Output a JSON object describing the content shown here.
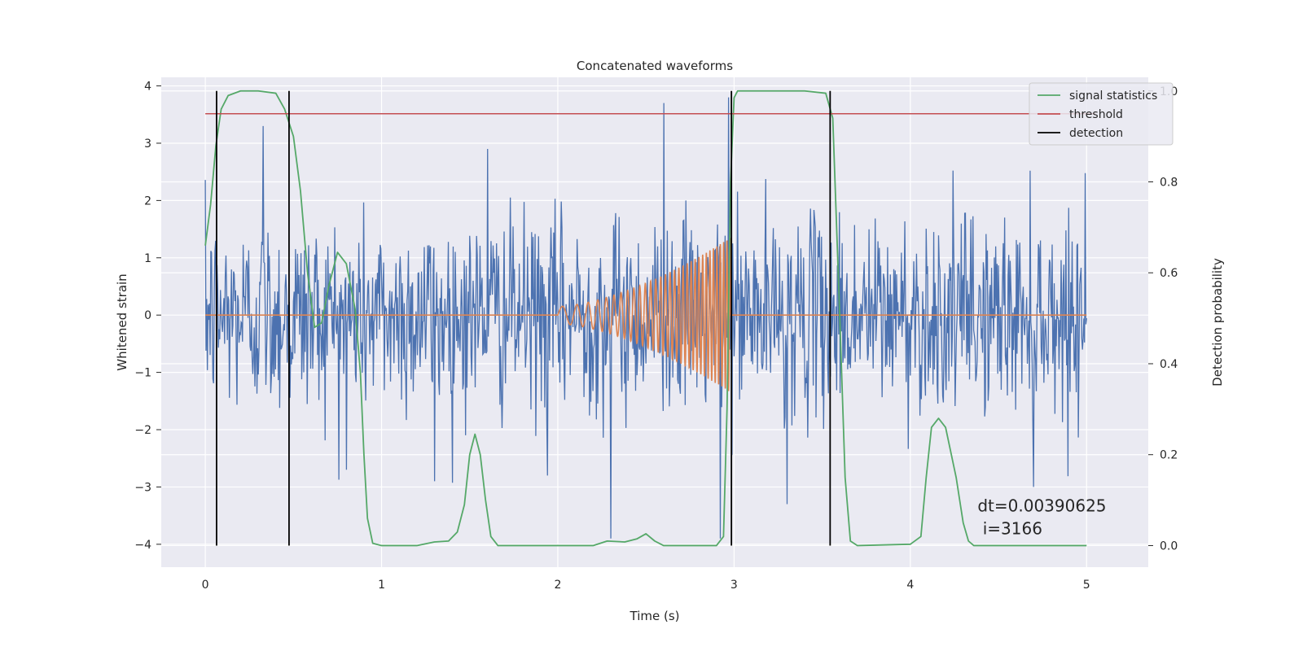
{
  "chart_data": {
    "type": "line",
    "title": "Concatenated waveforms",
    "xlabel": "Time (s)",
    "ylabel": "Whitened strain",
    "ylabel_right": "Detection probability",
    "xlim": [
      -0.25,
      5.35
    ],
    "ylim": [
      -4.4,
      4.15
    ],
    "ylim_right": [
      -0.0475,
      1.03
    ],
    "x_ticks": [
      0,
      1,
      2,
      3,
      4,
      5
    ],
    "y_ticks": [
      -4,
      -3,
      -2,
      -1,
      0,
      1,
      2,
      3,
      4
    ],
    "y_ticks_right": [
      0.0,
      0.2,
      0.4,
      0.6,
      0.8,
      1.0
    ],
    "x_tick_labels": [
      "0",
      "1",
      "2",
      "3",
      "4",
      "5"
    ],
    "y_tick_labels": [
      "−4",
      "−3",
      "−2",
      "−1",
      "0",
      "1",
      "2",
      "3",
      "4"
    ],
    "y_tick_labels_right": [
      "0.0",
      "0.2",
      "0.4",
      "0.6",
      "0.8",
      "1.0"
    ],
    "grid": true,
    "legend_position": "top-right",
    "series": [
      {
        "name": "",
        "axis": "left",
        "color": "#4c72b0",
        "kind": "noise",
        "x_range": [
          0,
          5
        ],
        "sample_step": 0.00390625,
        "std": 0.85,
        "spikes": [
          [
            0.33,
            3.3
          ],
          [
            0.8,
            -2.7
          ],
          [
            1.3,
            -2.9
          ],
          [
            1.6,
            2.9
          ],
          [
            1.94,
            -2.8
          ],
          [
            2.3,
            -3.9
          ],
          [
            2.6,
            3.7
          ],
          [
            2.92,
            -3.9
          ],
          [
            2.97,
            3.8
          ],
          [
            3.3,
            -3.3
          ],
          [
            4.7,
            -3.0
          ]
        ]
      },
      {
        "name": "",
        "axis": "left",
        "color": "#dd8452",
        "kind": "chirp",
        "segments": [
          [
            0,
            2,
            0
          ],
          [
            2,
            2.98,
            "chirp"
          ],
          [
            2.98,
            5,
            0
          ]
        ],
        "chirp_amplitude_end": 1.35,
        "chirp_freq_start": 9,
        "chirp_freq_end": 55
      },
      {
        "name": "signal statistics",
        "axis": "right",
        "color": "#55a868",
        "points": [
          [
            0.0,
            0.66
          ],
          [
            0.03,
            0.75
          ],
          [
            0.06,
            0.88
          ],
          [
            0.09,
            0.96
          ],
          [
            0.13,
            0.99
          ],
          [
            0.2,
            1.0
          ],
          [
            0.3,
            1.0
          ],
          [
            0.4,
            0.995
          ],
          [
            0.45,
            0.96
          ],
          [
            0.5,
            0.9
          ],
          [
            0.54,
            0.78
          ],
          [
            0.58,
            0.6
          ],
          [
            0.62,
            0.48
          ],
          [
            0.66,
            0.49
          ],
          [
            0.7,
            0.57
          ],
          [
            0.75,
            0.645
          ],
          [
            0.8,
            0.62
          ],
          [
            0.85,
            0.52
          ],
          [
            0.88,
            0.38
          ],
          [
            0.9,
            0.2
          ],
          [
            0.92,
            0.06
          ],
          [
            0.95,
            0.005
          ],
          [
            1.0,
            0.0
          ],
          [
            1.2,
            0.0
          ],
          [
            1.3,
            0.008
          ],
          [
            1.38,
            0.01
          ],
          [
            1.43,
            0.03
          ],
          [
            1.47,
            0.09
          ],
          [
            1.5,
            0.2
          ],
          [
            1.53,
            0.245
          ],
          [
            1.56,
            0.2
          ],
          [
            1.59,
            0.1
          ],
          [
            1.62,
            0.02
          ],
          [
            1.66,
            0.0
          ],
          [
            2.2,
            0.0
          ],
          [
            2.28,
            0.01
          ],
          [
            2.38,
            0.008
          ],
          [
            2.45,
            0.015
          ],
          [
            2.5,
            0.026
          ],
          [
            2.55,
            0.01
          ],
          [
            2.6,
            0.0
          ],
          [
            2.9,
            0.0
          ],
          [
            2.94,
            0.02
          ],
          [
            2.96,
            0.3
          ],
          [
            2.98,
            0.8
          ],
          [
            3.0,
            0.985
          ],
          [
            3.02,
            1.0
          ],
          [
            3.4,
            1.0
          ],
          [
            3.52,
            0.995
          ],
          [
            3.56,
            0.94
          ],
          [
            3.6,
            0.5
          ],
          [
            3.63,
            0.15
          ],
          [
            3.66,
            0.01
          ],
          [
            3.7,
            0.0
          ],
          [
            4.0,
            0.003
          ],
          [
            4.06,
            0.02
          ],
          [
            4.09,
            0.15
          ],
          [
            4.12,
            0.26
          ],
          [
            4.16,
            0.28
          ],
          [
            4.2,
            0.26
          ],
          [
            4.26,
            0.15
          ],
          [
            4.3,
            0.05
          ],
          [
            4.33,
            0.01
          ],
          [
            4.36,
            0.0
          ],
          [
            5.0,
            0.0
          ]
        ]
      },
      {
        "name": "threshold",
        "axis": "right",
        "color": "#c44e52",
        "points": [
          [
            0,
            0.95
          ],
          [
            5.05,
            0.95
          ]
        ]
      },
      {
        "name": "detection",
        "axis": "right",
        "color": "#000000",
        "vlines": [
          0.064,
          0.475,
          2.985,
          3.545
        ],
        "ymin": 0.0,
        "ymax": 1.0
      }
    ],
    "annotation": {
      "lines": [
        "dt=0.00390625",
        " i=3166"
      ],
      "x": 4.52,
      "y": -3.0
    }
  }
}
